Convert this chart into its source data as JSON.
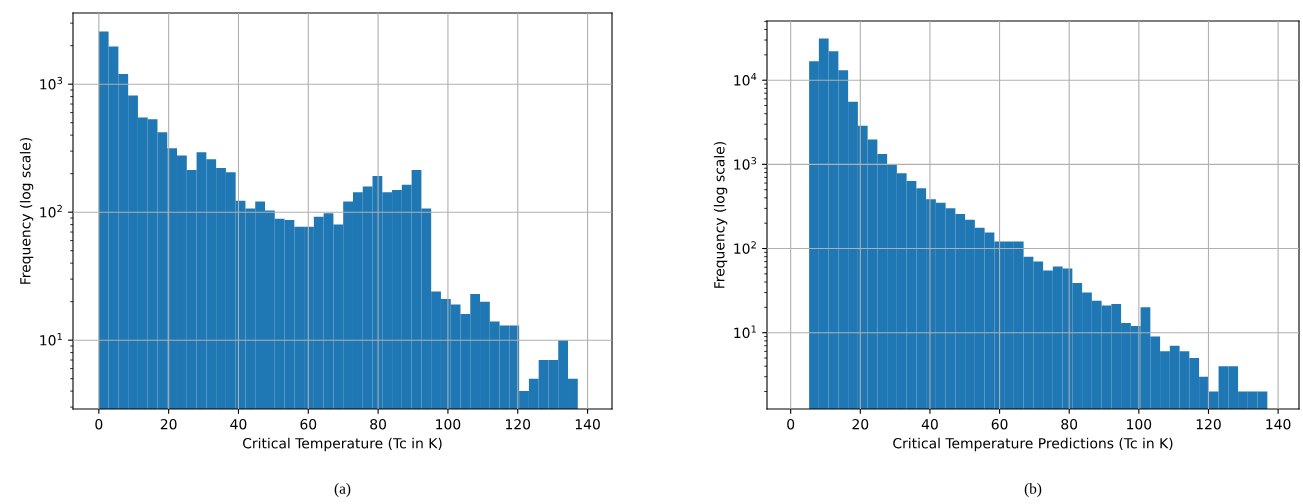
{
  "chart_data": [
    {
      "type": "histogram",
      "xlabel": "Critical Temperature (Tc in K)",
      "ylabel": "Frequency (log scale)",
      "color": "#1f77b4",
      "log": "y",
      "grid": true,
      "bins": [
        0,
        2.8,
        5.6,
        8.4,
        11.2,
        14,
        16.8,
        19.6,
        22.4,
        25.2,
        28,
        30.8,
        33.6,
        36.4,
        39.2,
        42,
        44.8,
        47.6,
        50.4,
        53.2,
        56,
        58.8,
        61.6,
        64.4,
        67.2,
        70,
        72.8,
        75.6,
        78.4,
        81.2,
        84,
        86.8,
        89.6,
        92.4,
        95.2,
        98,
        100.8,
        103.6,
        106.4,
        109.2,
        112,
        114.8,
        117.6,
        120.4,
        123.2,
        126,
        128.8,
        131.6,
        134.4,
        137.2
      ],
      "values": [
        2580,
        1970,
        1200,
        815,
        550,
        533,
        422,
        316,
        277,
        214,
        294,
        259,
        221,
        205,
        123,
        107,
        121,
        103,
        89,
        87,
        77,
        77,
        92,
        98,
        80,
        121,
        143,
        159,
        192,
        143,
        149,
        164,
        214,
        107,
        24,
        21,
        19,
        16,
        23,
        20,
        14,
        13,
        13,
        4,
        5,
        7,
        7,
        10,
        5
      ],
      "xlim": [
        -7.4,
        147
      ],
      "xticks": [
        0,
        20,
        40,
        60,
        80,
        100,
        120,
        140
      ],
      "ylim": [
        2.9,
        3600
      ],
      "yticks": [
        {
          "value": 10,
          "label": "10$^{1}$"
        },
        {
          "value": 100,
          "label": "10$^{2}$"
        },
        {
          "value": 1000,
          "label": "10$^{3}$"
        }
      ],
      "annotations": [
        "(a)"
      ]
    },
    {
      "type": "histogram",
      "xlabel": "Critical Temperature Predictions (Tc in K)",
      "ylabel": "Frequency (log scale)",
      "color": "#1f77b4",
      "log": "y",
      "grid": true,
      "bins": [
        5.3,
        8.1,
        10.9,
        13.7,
        16.5,
        19.3,
        22.1,
        24.9,
        27.7,
        30.5,
        33.3,
        36.1,
        38.9,
        41.7,
        44.5,
        47.3,
        50.1,
        52.9,
        55.7,
        58.5,
        61.3,
        64.1,
        66.9,
        69.7,
        72.5,
        75.3,
        78.1,
        80.9,
        83.7,
        86.5,
        89.3,
        92.1,
        94.9,
        97.7,
        100.5,
        103.3,
        106.1,
        108.9,
        111.7,
        114.5,
        117.3,
        120.1,
        122.9,
        125.7,
        128.5,
        131.3,
        134.1,
        136.9
      ],
      "values": [
        16800,
        31200,
        22100,
        13100,
        5540,
        2870,
        1980,
        1330,
        1010,
        782,
        634,
        519,
        385,
        351,
        301,
        258,
        219,
        177,
        155,
        121,
        121,
        121,
        80,
        70,
        55,
        61,
        58,
        39,
        30,
        24,
        21,
        22,
        13,
        12,
        20,
        9,
        6,
        7,
        6,
        5,
        3,
        2,
        4,
        4,
        2,
        2,
        2
      ],
      "xlim": [
        -6.8,
        146
      ],
      "xticks": [
        0,
        20,
        40,
        60,
        80,
        100,
        120,
        140
      ],
      "ylim": [
        1.24,
        50500
      ],
      "yticks": [
        {
          "value": 10,
          "label": "10$^{1}$"
        },
        {
          "value": 100,
          "label": "10$^{2}$"
        },
        {
          "value": 1000,
          "label": "10$^{3}$"
        },
        {
          "value": 10000,
          "label": "10$^{4}$"
        }
      ],
      "annotations": [
        "(b)"
      ]
    }
  ]
}
